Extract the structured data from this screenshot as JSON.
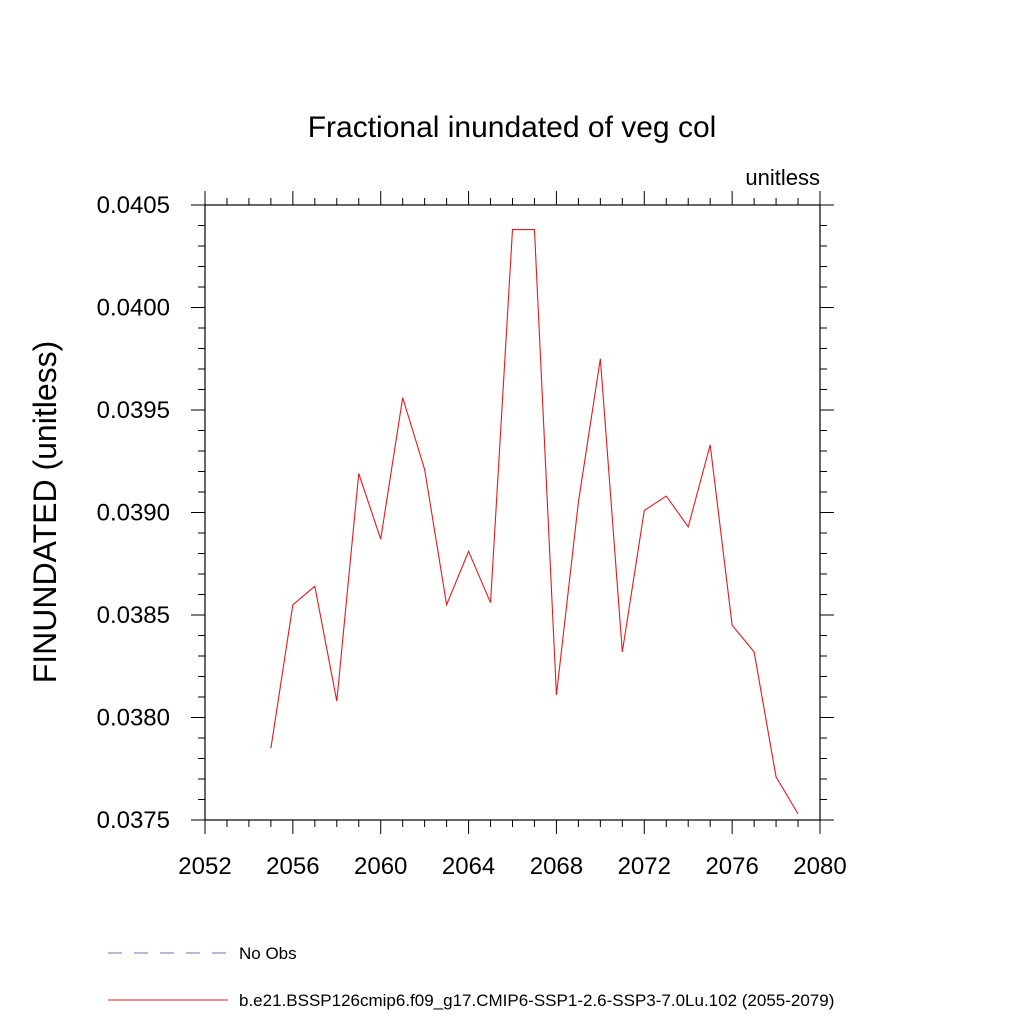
{
  "chart_data": {
    "type": "line",
    "title": "Fractional inundated of veg col",
    "units_label": "unitless",
    "ylabel": "FINUNDATED  (unitless)",
    "xlabel": "",
    "xlim": [
      2052,
      2080
    ],
    "ylim": [
      0.0375,
      0.0405
    ],
    "x_ticks": [
      2052,
      2056,
      2060,
      2064,
      2068,
      2072,
      2076,
      2080
    ],
    "x_tick_labels": [
      "2052",
      "2056",
      "2060",
      "2064",
      "2068",
      "2072",
      "2076",
      "2080"
    ],
    "y_ticks": [
      0.0375,
      0.038,
      0.0385,
      0.039,
      0.0395,
      0.04,
      0.0405
    ],
    "y_tick_labels": [
      "0.0375",
      "0.0380",
      "0.0385",
      "0.0390",
      "0.0395",
      "0.0400",
      "0.0405"
    ],
    "x_minor_step": 1,
    "y_minor_step": 0.0001,
    "grid": false,
    "legend_position": "bottom",
    "series": [
      {
        "name": "b.e21.BSSP126cmip6.f09_g17.CMIP6-SSP1-2.6-SSP3-7.0Lu.102 (2055-2079)",
        "color": "#e41a1c",
        "style": "solid",
        "x": [
          2055,
          2056,
          2057,
          2058,
          2059,
          2060,
          2061,
          2062,
          2063,
          2064,
          2065,
          2066,
          2067,
          2068,
          2069,
          2070,
          2071,
          2072,
          2073,
          2074,
          2075,
          2076,
          2077,
          2078,
          2079
        ],
        "y": [
          0.03785,
          0.03855,
          0.03864,
          0.03808,
          0.03919,
          0.03887,
          0.03956,
          0.03921,
          0.03855,
          0.03881,
          0.03856,
          0.04038,
          0.04038,
          0.03811,
          0.03905,
          0.03975,
          0.03832,
          0.03901,
          0.03908,
          0.03893,
          0.03933,
          0.03845,
          0.03832,
          0.03771,
          0.03753
        ]
      }
    ],
    "legend": [
      {
        "label": "No Obs",
        "color": "#7a6fb3",
        "style": "dashed"
      },
      {
        "label": "b.e21.BSSP126cmip6.f09_g17.CMIP6-SSP1-2.6-SSP3-7.0Lu.102 (2055-2079)",
        "color": "#e41a1c",
        "style": "solid"
      }
    ]
  }
}
